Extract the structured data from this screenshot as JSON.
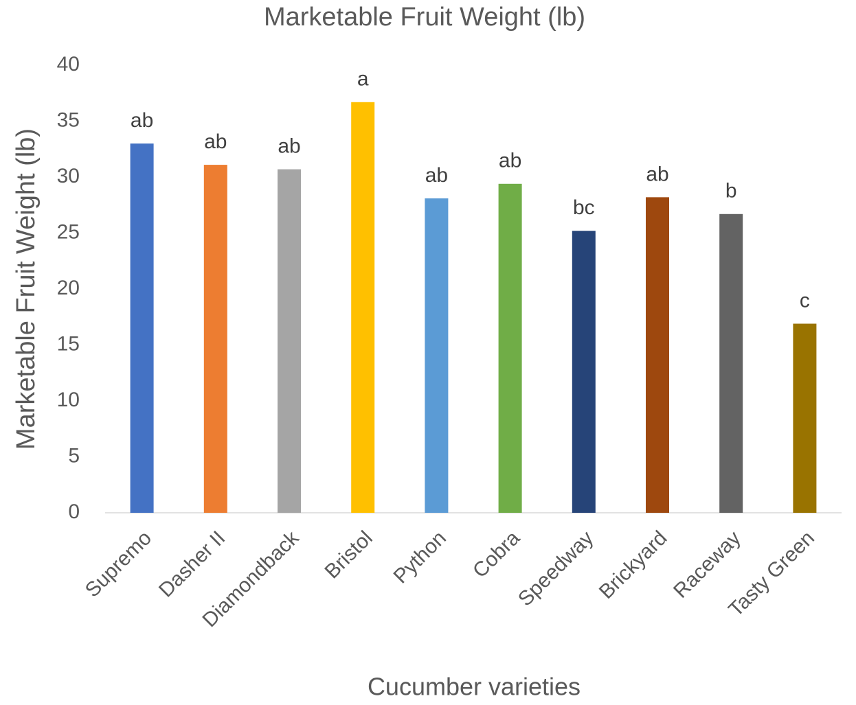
{
  "chart_data": {
    "type": "bar",
    "title": "Marketable Fruit Weight (lb)",
    "x_label": "Cucumber varieties",
    "y_label": "Marketable Fruit Weight (lb)",
    "categories": [
      "Supremo",
      "Dasher II",
      "Diamondback",
      "Bristol",
      "Python",
      "Cobra",
      "Speedway",
      "Brickyard",
      "Raceway",
      "Tasty Green"
    ],
    "values": [
      33.0,
      31.1,
      30.7,
      36.7,
      28.1,
      29.4,
      25.2,
      28.2,
      26.7,
      16.9
    ],
    "annotations": [
      "ab",
      "ab",
      "ab",
      "a",
      "ab",
      "ab",
      "bc",
      "ab",
      "b",
      "c"
    ],
    "colors": [
      "#4472c4",
      "#ed7d31",
      "#a5a5a5",
      "#ffc000",
      "#5b9bd5",
      "#70ad47",
      "#264478",
      "#9e480e",
      "#636363",
      "#997300"
    ],
    "ylim": [
      0,
      40
    ],
    "yticks": [
      0,
      5,
      10,
      15,
      20,
      25,
      30,
      35,
      40
    ],
    "grid": false
  }
}
